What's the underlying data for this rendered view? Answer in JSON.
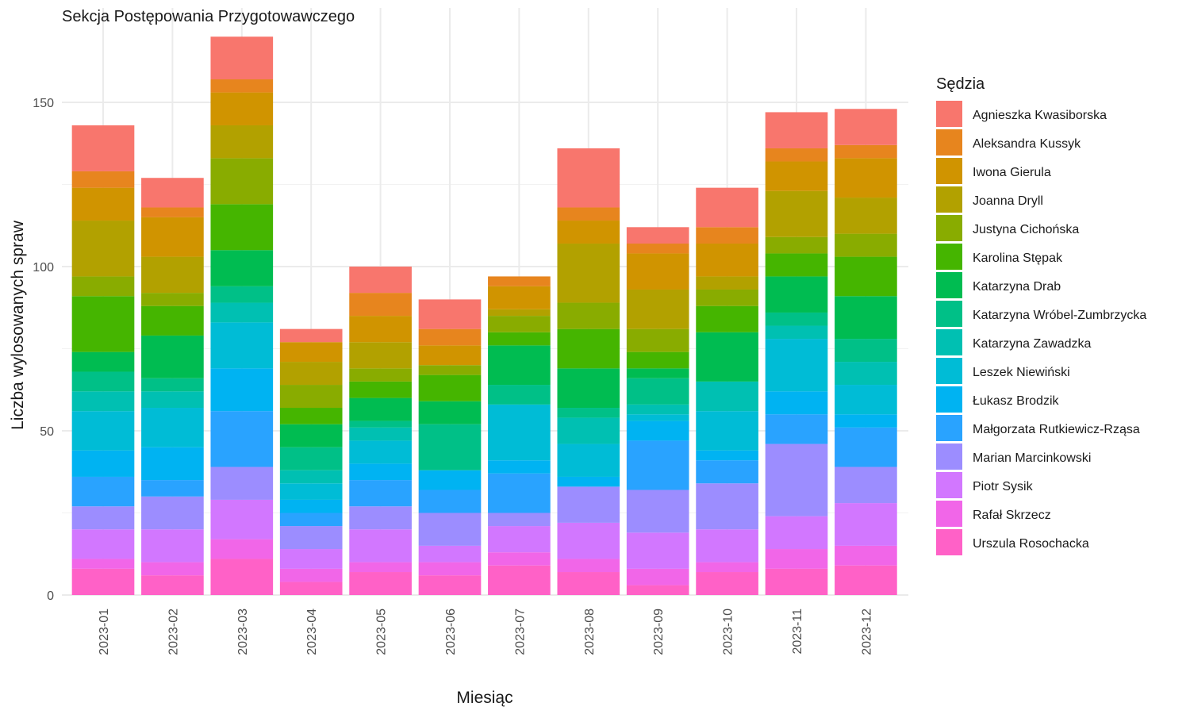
{
  "chart_data": {
    "type": "bar",
    "stacked": true,
    "title": "Sekcja Postępowania Przygotowawczego",
    "xlabel": "Miesiąc",
    "ylabel": "Liczba wylosowanych spraw",
    "ylim": [
      0,
      170
    ],
    "yticks": [
      0,
      50,
      100,
      150
    ],
    "grid": true,
    "legend_title": "Sędzia",
    "legend_position": "right",
    "categories": [
      "2023-01",
      "2023-02",
      "2023-03",
      "2023-04",
      "2023-05",
      "2023-06",
      "2023-07",
      "2023-08",
      "2023-09",
      "2023-10",
      "2023-11",
      "2023-12"
    ],
    "series": [
      {
        "name": "Agnieszka Kwasiborska",
        "color": "#F8766D",
        "values": [
          14,
          9,
          13,
          4,
          8,
          9,
          0,
          18,
          5,
          12,
          11,
          11
        ]
      },
      {
        "name": "Aleksandra Kussyk",
        "color": "#E7851E",
        "values": [
          5,
          3,
          4,
          0,
          7,
          5,
          3,
          4,
          3,
          5,
          4,
          4
        ]
      },
      {
        "name": "Iwona Gierula",
        "color": "#D09400",
        "values": [
          10,
          12,
          10,
          6,
          8,
          6,
          7,
          7,
          11,
          10,
          9,
          12
        ]
      },
      {
        "name": "Joanna Dryll",
        "color": "#B2A100",
        "values": [
          17,
          11,
          10,
          7,
          8,
          0,
          2,
          18,
          12,
          4,
          14,
          11
        ]
      },
      {
        "name": "Justyna Cichońska",
        "color": "#89AC00",
        "values": [
          6,
          4,
          14,
          7,
          4,
          3,
          5,
          8,
          7,
          5,
          5,
          7
        ]
      },
      {
        "name": "Karolina Stępak",
        "color": "#45B500",
        "values": [
          17,
          9,
          14,
          5,
          5,
          8,
          4,
          12,
          5,
          8,
          7,
          12
        ]
      },
      {
        "name": "Katarzyna Drab",
        "color": "#00BC51",
        "values": [
          6,
          13,
          11,
          7,
          7,
          7,
          12,
          12,
          3,
          15,
          11,
          13
        ]
      },
      {
        "name": "Katarzyna Wróbel-Zumbrzycka",
        "color": "#00C087",
        "values": [
          6,
          4,
          5,
          7,
          2,
          14,
          6,
          3,
          8,
          0,
          4,
          7
        ]
      },
      {
        "name": "Katarzyna Zawadzka",
        "color": "#00C0B2",
        "values": [
          6,
          5,
          6,
          4,
          4,
          0,
          0,
          8,
          3,
          9,
          4,
          7
        ]
      },
      {
        "name": "Leszek Niewiński",
        "color": "#00BCD6",
        "values": [
          12,
          12,
          14,
          5,
          7,
          0,
          17,
          10,
          2,
          12,
          16,
          9
        ]
      },
      {
        "name": "Łukasz Brodzik",
        "color": "#00B3F2",
        "values": [
          8,
          10,
          13,
          4,
          5,
          6,
          4,
          3,
          6,
          3,
          7,
          4
        ]
      },
      {
        "name": "Małgorzata Rutkiewicz-Rząsa",
        "color": "#29A3FF",
        "values": [
          9,
          5,
          17,
          4,
          8,
          7,
          12,
          0,
          15,
          7,
          9,
          12
        ]
      },
      {
        "name": "Marian Marcinkowski",
        "color": "#9C8DFF",
        "values": [
          7,
          10,
          10,
          7,
          7,
          10,
          4,
          11,
          13,
          14,
          22,
          11
        ]
      },
      {
        "name": "Piotr Sysik",
        "color": "#D277FF",
        "values": [
          9,
          10,
          12,
          6,
          10,
          5,
          8,
          11,
          11,
          10,
          10,
          13
        ]
      },
      {
        "name": "Rafał Skrzecz",
        "color": "#F166E8",
        "values": [
          3,
          4,
          6,
          4,
          3,
          4,
          4,
          4,
          5,
          3,
          6,
          6
        ]
      },
      {
        "name": "Urszula Rosochacka",
        "color": "#FF61C7",
        "values": [
          8,
          6,
          11,
          4,
          7,
          6,
          9,
          7,
          3,
          7,
          8,
          9
        ]
      }
    ]
  }
}
